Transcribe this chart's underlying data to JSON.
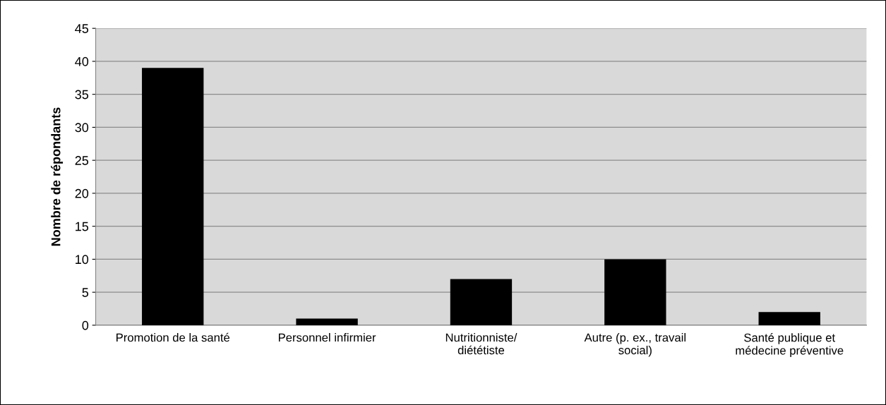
{
  "chart_data": {
    "type": "bar",
    "ylabel": "Nombre de répondants",
    "categories": [
      "Promotion de la santé",
      "Personnel infirmier",
      "Nutritionniste/\ndiététiste",
      "Autre (p. ex., travail\nsocial)",
      "Santé publique et\nmédecine préventive"
    ],
    "values": [
      39,
      1,
      7,
      10,
      2
    ],
    "color": "#000000",
    "ylim": [
      0,
      45
    ],
    "yticks": [
      0,
      5,
      10,
      15,
      20,
      25,
      30,
      35,
      40,
      45
    ],
    "grid": "y",
    "legend": false
  }
}
